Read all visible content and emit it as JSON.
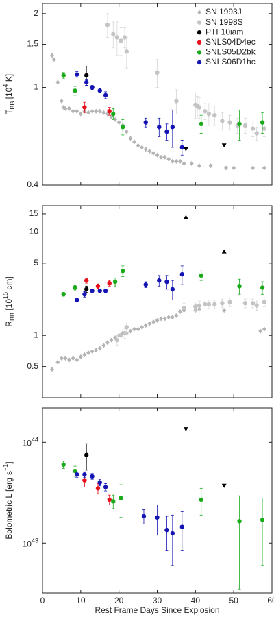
{
  "chart_data": [
    {
      "type": "scatter",
      "ylog": true,
      "ylim": [
        0.4,
        2.2
      ],
      "yticks": [
        0.4,
        1,
        1.5,
        2
      ],
      "xlim": [
        0,
        60
      ],
      "ylabel": [
        {
          "text": "T"
        },
        {
          "text": "BB",
          "shift": "sub"
        },
        {
          "text": " [10"
        },
        {
          "text": "4",
          "shift": "super"
        },
        {
          "text": " K]"
        }
      ],
      "legend": "upper right",
      "series": [
        {
          "name": "SN 1993J",
          "color": "#b4b4b4",
          "marker": "diamond",
          "x": [
            2.5,
            3,
            4,
            5,
            5.5,
            6,
            7,
            8,
            9,
            10,
            11,
            12,
            13,
            14,
            15,
            16,
            17,
            18,
            19,
            20,
            21,
            22,
            23,
            24,
            25,
            26,
            27,
            28,
            29,
            30,
            31,
            32,
            33,
            34,
            35,
            36,
            37,
            39,
            41,
            44,
            48,
            50,
            55,
            58
          ],
          "values": [
            1.35,
            1.3,
            1.05,
            0.88,
            0.83,
            0.82,
            0.82,
            0.8,
            0.8,
            0.78,
            0.8,
            0.79,
            0.8,
            0.8,
            0.8,
            0.79,
            0.78,
            0.76,
            0.74,
            0.72,
            0.7,
            0.66,
            0.62,
            0.6,
            0.58,
            0.57,
            0.56,
            0.55,
            0.54,
            0.53,
            0.52,
            0.52,
            0.51,
            0.5,
            0.5,
            0.5,
            0.49,
            0.49,
            0.48,
            0.48,
            0.47,
            0.47,
            0.47,
            0.47
          ]
        },
        {
          "name": "SN 1998S",
          "color": "#c4c4c4",
          "marker": "circle",
          "x": [
            17,
            18.5,
            19.5,
            20.5,
            21.5,
            22,
            30,
            35,
            40,
            40.5,
            41,
            42.5,
            43.5,
            45,
            47,
            49,
            51,
            53,
            55,
            56,
            58
          ],
          "values": [
            1.8,
            1.65,
            1.6,
            1.55,
            1.6,
            1.4,
            1.15,
            0.88,
            0.85,
            0.84,
            0.83,
            0.8,
            0.78,
            0.77,
            0.73,
            0.72,
            0.7,
            0.7,
            0.68,
            0.65,
            0.68
          ],
          "errors": [
            0.2,
            0.2,
            0.25,
            0.2,
            0.15,
            0.2,
            0.15,
            0.1,
            0.1,
            0.08,
            0.08,
            0.06,
            0.08,
            0.07,
            0.06,
            0.05,
            0.05,
            0.05,
            0.05,
            0.04,
            0.05
          ]
        },
        {
          "name": "PTF10iam",
          "color": "#000000",
          "marker": "circle",
          "x": [
            11.5
          ],
          "values": [
            1.12
          ],
          "errors": [
            0.1
          ]
        },
        {
          "name": "SNLS04D4ec",
          "color": "#e8101a",
          "marker": "circle",
          "x": [
            11,
            17.5
          ],
          "values": [
            0.83,
            0.8
          ],
          "errors": [
            0.04,
            0.03
          ]
        },
        {
          "name": "SNLS05D2bk",
          "color": "#1aaa1a",
          "marker": "circle",
          "x": [
            5.5,
            8.5,
            18.5,
            21,
            41.5,
            51.5,
            57.5
          ],
          "values": [
            1.12,
            0.97,
            0.78,
            0.69,
            0.71,
            0.71,
            0.72
          ],
          "errors": [
            0.03,
            0.04,
            0.04,
            0.05,
            0.06,
            0.1,
            0.07
          ]
        },
        {
          "name": "SNLS06D1hc",
          "color": "#1414b4",
          "marker": "circle",
          "x": [
            9,
            11.5,
            13,
            15,
            16.5,
            27,
            30.5,
            32.5,
            34,
            36.5
          ],
          "values": [
            1.13,
            1.05,
            1.0,
            0.97,
            0.93,
            0.72,
            0.69,
            0.66,
            0.69,
            0.57
          ],
          "errors": [
            0.03,
            0.03,
            0.02,
            0.02,
            0.03,
            0.03,
            0.06,
            0.05,
            0.12,
            0.04
          ]
        }
      ],
      "limits": {
        "color": "#000000",
        "marker": "down",
        "x": [
          37.5,
          47.5
        ],
        "values": [
          0.56,
          0.58
        ]
      }
    },
    {
      "type": "scatter",
      "ylog": true,
      "ylim": [
        0.25,
        18
      ],
      "yticks": [
        0.5,
        1,
        5,
        10,
        15
      ],
      "xlim": [
        0,
        60
      ],
      "ylabel": [
        {
          "text": "R"
        },
        {
          "text": "BB",
          "shift": "sub"
        },
        {
          "text": " [10"
        },
        {
          "text": "15",
          "shift": "super"
        },
        {
          "text": " cm]"
        }
      ],
      "series": [
        {
          "color": "#b4b4b4",
          "marker": "diamond",
          "x": [
            2.5,
            4,
            5,
            6,
            7,
            8,
            9,
            10,
            11,
            12,
            13,
            14,
            15,
            16,
            17,
            18,
            19,
            20,
            21,
            22,
            23,
            24,
            25,
            26,
            27,
            28,
            29,
            30,
            31,
            32,
            33,
            34,
            35,
            36,
            37,
            40,
            41,
            47.5,
            57,
            58
          ],
          "values": [
            0.47,
            0.55,
            0.6,
            0.6,
            0.58,
            0.6,
            0.58,
            0.62,
            0.65,
            0.68,
            0.7,
            0.72,
            0.75,
            0.8,
            0.85,
            0.9,
            0.95,
            1.0,
            1.05,
            1.05,
            1.1,
            1.15,
            1.15,
            1.2,
            1.25,
            1.3,
            1.35,
            1.4,
            1.45,
            1.45,
            1.5,
            1.5,
            1.55,
            1.7,
            1.75,
            1.75,
            1.8,
            1.75,
            1.1,
            1.15
          ]
        },
        {
          "color": "#c4c4c4",
          "marker": "circle",
          "x": [
            19.5,
            20.5,
            21.5,
            22,
            37,
            40,
            41,
            42.5,
            43.5,
            45,
            47,
            49,
            53,
            55,
            56,
            58
          ],
          "values": [
            0.9,
            1.0,
            1.05,
            1.2,
            1.85,
            1.9,
            1.95,
            2.0,
            2.0,
            2.0,
            2.05,
            2.1,
            2.05,
            2.05,
            1.95,
            2.1
          ],
          "errors": [
            0.1,
            0.12,
            0.12,
            0.15,
            0.2,
            0.2,
            0.2,
            0.2,
            0.2,
            0.2,
            0.2,
            0.2,
            0.2,
            0.2,
            0.2,
            0.2
          ]
        },
        {
          "color": "#000000",
          "marker": "circle",
          "x": [
            11.5
          ],
          "values": [
            2.8
          ],
          "errors": [
            0.2
          ]
        },
        {
          "color": "#e8101a",
          "marker": "circle",
          "x": [
            11.5,
            14.5,
            17.5
          ],
          "values": [
            3.4,
            3.0,
            3.2
          ],
          "errors": [
            0.2,
            0.15,
            0.2
          ]
        },
        {
          "color": "#1aaa1a",
          "marker": "circle",
          "x": [
            5.5,
            8.5,
            19,
            21,
            41.5,
            51.5,
            57.5
          ],
          "values": [
            2.5,
            2.9,
            3.3,
            4.2,
            3.8,
            3.0,
            2.9
          ],
          "errors": [
            0.1,
            0.15,
            0.3,
            0.5,
            0.4,
            0.5,
            0.4
          ]
        },
        {
          "color": "#1414b4",
          "marker": "circle",
          "x": [
            9,
            11,
            13,
            15,
            16.5,
            27,
            30.5,
            32.5,
            34,
            36.5
          ],
          "values": [
            2.2,
            2.5,
            2.7,
            2.7,
            2.7,
            3.1,
            3.4,
            3.3,
            2.8,
            3.9
          ],
          "errors": [
            0.1,
            0.15,
            0.1,
            0.1,
            0.1,
            0.2,
            0.4,
            0.5,
            0.6,
            0.8
          ]
        }
      ],
      "limits": {
        "color": "#000000",
        "marker": "up",
        "x": [
          37.5,
          47.5
        ],
        "values": [
          14,
          6.5
        ]
      }
    },
    {
      "type": "scatter",
      "ylog": true,
      "ylim": [
        3.2e+42,
        2.2e+44
      ],
      "yticks": [
        {
          "value": 1e+43,
          "label": "10",
          "exponent": "43"
        },
        {
          "value": 1e+44,
          "label": "10",
          "exponent": "44"
        }
      ],
      "xlim": [
        0,
        60
      ],
      "xticks": [
        0,
        10,
        20,
        30,
        40,
        50,
        60
      ],
      "xlabel": "Rest Frame Days Since Explosion",
      "ylabel": [
        {
          "text": "Bolometric L [erg s"
        },
        {
          "text": "−1",
          "shift": "super"
        },
        {
          "text": "]"
        }
      ],
      "series": [
        {
          "color": "#000000",
          "marker": "circle",
          "x": [
            11.5
          ],
          "values": [
            7.5e+43
          ],
          "errors": [
            2.2e+43
          ]
        },
        {
          "color": "#e8101a",
          "marker": "circle",
          "x": [
            11,
            14.5,
            17.5
          ],
          "values": [
            4.2e+43,
            3.5e+43,
            2.7e+43
          ],
          "errors": [
            6e+42,
            4e+42,
            3e+42
          ]
        },
        {
          "color": "#1aaa1a",
          "marker": "circle",
          "x": [
            5.5,
            8.5,
            18.5,
            20.5,
            41.5,
            51.5,
            57.5
          ],
          "values": [
            6e+43,
            5.2e+43,
            2.6e+43,
            2.8e+43,
            2.7e+43,
            1.65e+43,
            1.7e+43
          ],
          "errors": [
            5e+42,
            6e+42,
            4e+42,
            1e+43,
            8e+42,
            1.3e+43,
            1.1e+43
          ]
        },
        {
          "color": "#1414b4",
          "marker": "circle",
          "x": [
            9,
            11,
            13,
            15,
            16.5,
            26.5,
            30,
            32.5,
            34,
            36.5
          ],
          "values": [
            4.8e+43,
            4.8e+43,
            4.6e+43,
            4e+43,
            3.6e+43,
            1.85e+43,
            1.8e+43,
            1.35e+43,
            1.25e+43,
            1.45e+43
          ],
          "errors": [
            3e+42,
            3e+42,
            3e+42,
            3e+42,
            3e+42,
            3e+42,
            6e+42,
            5e+42,
            6.5e+42,
            6e+42
          ]
        }
      ],
      "limits": {
        "color": "#000000",
        "marker": "down",
        "x": [
          37.5,
          47.5
        ],
        "values": [
          1.35e+44,
          3.7e+43
        ]
      }
    }
  ]
}
